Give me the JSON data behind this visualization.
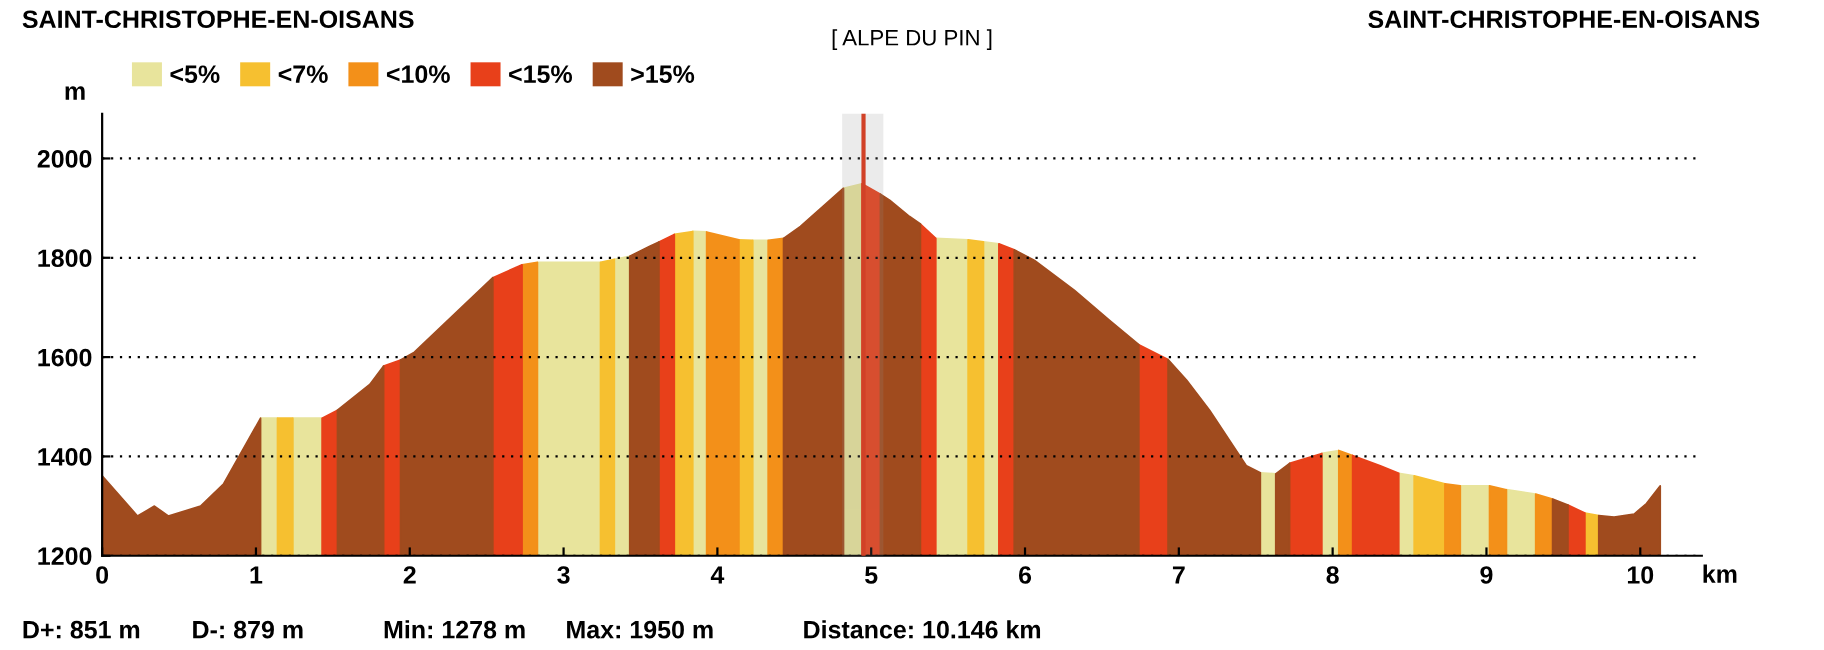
{
  "chart_data": {
    "type": "area",
    "title": "SAINT-CHRISTOPHE-EN-OISANS",
    "subtitle": "[ ALPE DU PIN ]",
    "ylabel": "m",
    "xlabel": "km",
    "annotations": [
      "SAINT-CHRISTOPHE-EN-OISANS",
      "D+: 851 m",
      "D-: 879 m",
      "Min: 1278 m",
      "Max: 1950 m",
      "Distance: 10.146 km"
    ],
    "xlim": [
      0,
      10.4
    ],
    "xticks": [
      0,
      1,
      2,
      3,
      4,
      5,
      6,
      7,
      8,
      9,
      10
    ],
    "ylim": [
      1200,
      2090
    ],
    "yticks": [
      1200,
      1400,
      1600,
      1800,
      2000
    ],
    "grid": "y",
    "legend": "top left",
    "ref_lines": [
      {
        "axis": "x",
        "value": 4.95,
        "color": "#e03010"
      }
    ],
    "bands": [
      {
        "axis": "x",
        "from": 4.82,
        "to": 5.07,
        "color": "#909090"
      }
    ],
    "series": [
      {
        "name": "<5%",
        "color": "#e8e49c",
        "x": [
          1.03,
          1.14,
          null,
          1.24,
          1.43,
          null,
          2.83,
          3.24,
          null,
          3.33,
          3.43,
          null,
          3.84,
          3.93,
          null,
          4.23,
          4.33,
          null,
          4.82,
          4.94,
          null,
          5.42,
          5.63,
          null,
          5.73,
          5.83,
          null,
          7.53,
          7.63,
          null,
          7.93,
          8.04,
          null,
          8.43,
          8.53,
          null,
          8.83,
          9.02,
          null,
          9.13,
          9.32
        ],
        "values": [
          1477,
          1477,
          null,
          1477,
          1477,
          null,
          1791,
          1791,
          null,
          1797,
          1803,
          null,
          1853,
          1852,
          null,
          1835,
          1835,
          null,
          1940,
          1949,
          null,
          1839,
          1836,
          null,
          1832,
          1828,
          null,
          1367,
          1365,
          null,
          1406,
          1412,
          null,
          1366,
          1361,
          null,
          1341,
          1341,
          null,
          1333,
          1324
        ]
      },
      {
        "name": "<7%",
        "color": "#f6c030",
        "x": [
          1.14,
          1.24,
          null,
          3.24,
          3.33,
          null,
          3.72,
          3.84,
          null,
          4.14,
          4.23,
          null,
          5.63,
          5.73,
          null,
          8.53,
          8.73,
          null,
          9.64,
          9.73
        ],
        "values": [
          1477,
          1477,
          null,
          1791,
          1797,
          null,
          1847,
          1853,
          null,
          1836,
          1835,
          null,
          1836,
          1832,
          null,
          1361,
          1345,
          null,
          1286,
          1281
        ]
      },
      {
        "name": "<10%",
        "color": "#f39019",
        "x": [
          2.73,
          2.83,
          null,
          3.93,
          4.14,
          null,
          4.33,
          4.43,
          null,
          8.04,
          8.13,
          null,
          8.73,
          8.83,
          null,
          9.02,
          9.13,
          null,
          9.32,
          9.43
        ],
        "values": [
          1786,
          1791,
          null,
          1852,
          1836,
          null,
          1835,
          1839,
          null,
          1412,
          1402,
          null,
          1345,
          1341,
          null,
          1341,
          1333,
          null,
          1324,
          1314
        ]
      },
      {
        "name": "<15%",
        "color": "#e8401a",
        "x": [
          1.43,
          1.53,
          null,
          1.83,
          1.94,
          null,
          2.54,
          2.73,
          null,
          3.62,
          3.72,
          null,
          4.94,
          5.06,
          null,
          5.32,
          5.42,
          null,
          5.83,
          5.93,
          null,
          6.74,
          6.93,
          null,
          7.72,
          7.93,
          null,
          8.13,
          8.31,
          8.43,
          null,
          9.53,
          9.64
        ],
        "values": [
          1477,
          1493,
          null,
          1582,
          1594,
          null,
          1760,
          1786,
          null,
          1832,
          1847,
          null,
          1949,
          1928,
          null,
          1868,
          1839,
          null,
          1828,
          1816,
          null,
          1625,
          1595,
          null,
          1386,
          1406,
          null,
          1402,
          1381,
          1366,
          null,
          1302,
          1286
        ]
      },
      {
        "name": ">15%",
        "color": "#a04b1e",
        "x": [
          0,
          0.23,
          0.34,
          0.43,
          0.64,
          0.79,
          1.03,
          null,
          1.53,
          1.74,
          1.83,
          null,
          1.94,
          2.03,
          2.54,
          null,
          3.43,
          3.56,
          3.62,
          null,
          4.43,
          4.54,
          4.82,
          null,
          5.06,
          5.12,
          5.25,
          5.32,
          null,
          5.93,
          6.06,
          6.32,
          6.55,
          6.74,
          null,
          6.93,
          7.05,
          7.2,
          7.44,
          7.53,
          null,
          7.63,
          7.72,
          null,
          9.43,
          9.53,
          null,
          9.73,
          9.83,
          9.96,
          10.04,
          10.13
        ],
        "values": [
          1361,
          1280,
          1300,
          1280,
          1300,
          1345,
          1477,
          null,
          1493,
          1545,
          1582,
          null,
          1594,
          1610,
          1760,
          null,
          1803,
          1823,
          1832,
          null,
          1839,
          1863,
          1940,
          null,
          1928,
          1916,
          1883,
          1868,
          null,
          1816,
          1795,
          1735,
          1674,
          1625,
          null,
          1595,
          1554,
          1493,
          1381,
          1367,
          null,
          1365,
          1386,
          null,
          1314,
          1302,
          null,
          1281,
          1278,
          1284,
          1305,
          1341
        ]
      }
    ]
  }
}
